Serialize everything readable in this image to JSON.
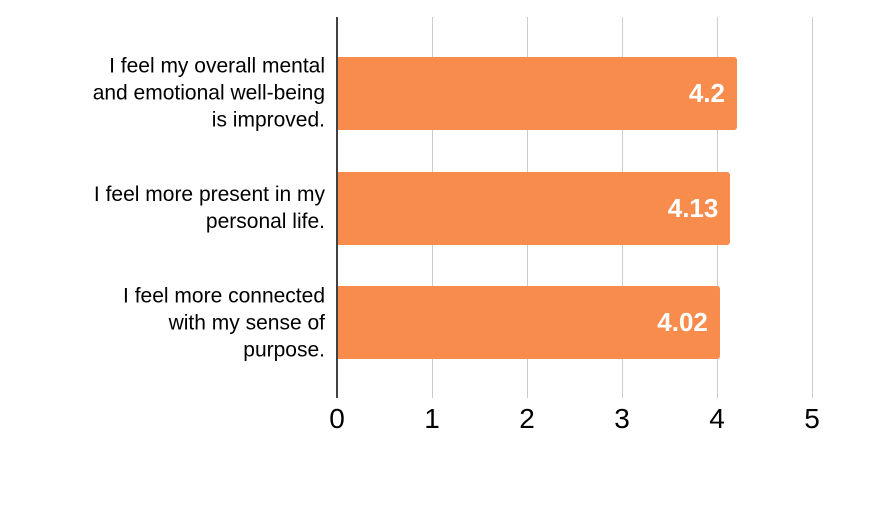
{
  "chart_data": {
    "type": "bar",
    "orientation": "horizontal",
    "title": "",
    "xlabel": "",
    "ylabel": "",
    "categories": [
      "I feel my overall mental and emotional well-being is improved.",
      "I feel more present in my personal life.",
      "I feel more connected with my sense of purpose."
    ],
    "category_lines": [
      [
        "I feel my overall mental",
        "and emotional well-being",
        "is improved."
      ],
      [
        "I feel more present in my",
        "personal life."
      ],
      [
        "I feel more connected",
        "with my sense of",
        "purpose."
      ]
    ],
    "values": [
      4.2,
      4.13,
      4.02
    ],
    "value_labels": [
      "4.2",
      "4.13",
      "4.02"
    ],
    "xlim": [
      0,
      5
    ],
    "x_ticks": [
      0,
      1,
      2,
      3,
      4,
      5
    ],
    "x_tick_labels": [
      "0",
      "1",
      "2",
      "3",
      "4",
      "5"
    ],
    "grid": true,
    "legend": "none",
    "colors": {
      "bar": "#F78C4C",
      "value_label": "#FFFFFF",
      "axis_line": "#424242",
      "gridline": "#CCCCCC",
      "text": "#000000",
      "background": "#FFFFFF"
    }
  }
}
